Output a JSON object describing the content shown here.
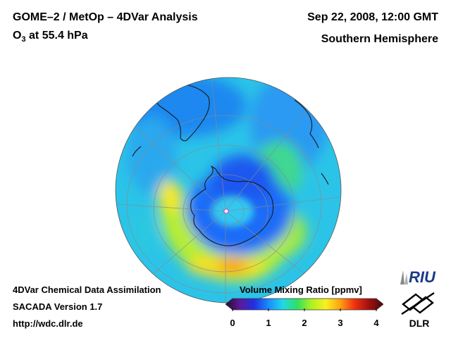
{
  "header": {
    "title_left": "GOME–2 / MetOp – 4DVar Analysis",
    "species": "O",
    "species_sub": "3",
    "level": " at 55.4 hPa",
    "title_right": "Sep 22, 2008, 12:00 GMT",
    "region": "Southern Hemisphere"
  },
  "footer": {
    "line1": "4DVar Chemical Data Assimilation",
    "line2": "SACADA Version 1.7",
    "line3": "http://wdc.dlr.de"
  },
  "colorbar": {
    "title": "Volume Mixing Ratio [ppmv]",
    "ticks": [
      "0",
      "1",
      "2",
      "3",
      "4"
    ],
    "min": 0,
    "max": 4,
    "colors": [
      "#2a0a2e",
      "#5a1a9a",
      "#2030e0",
      "#1a8cff",
      "#20d8e8",
      "#30e060",
      "#b0f020",
      "#f8f020",
      "#ffa010",
      "#f03010",
      "#a01010",
      "#4a0808"
    ]
  },
  "logos": {
    "riu": "RIU",
    "dlr": "DLR"
  }
}
